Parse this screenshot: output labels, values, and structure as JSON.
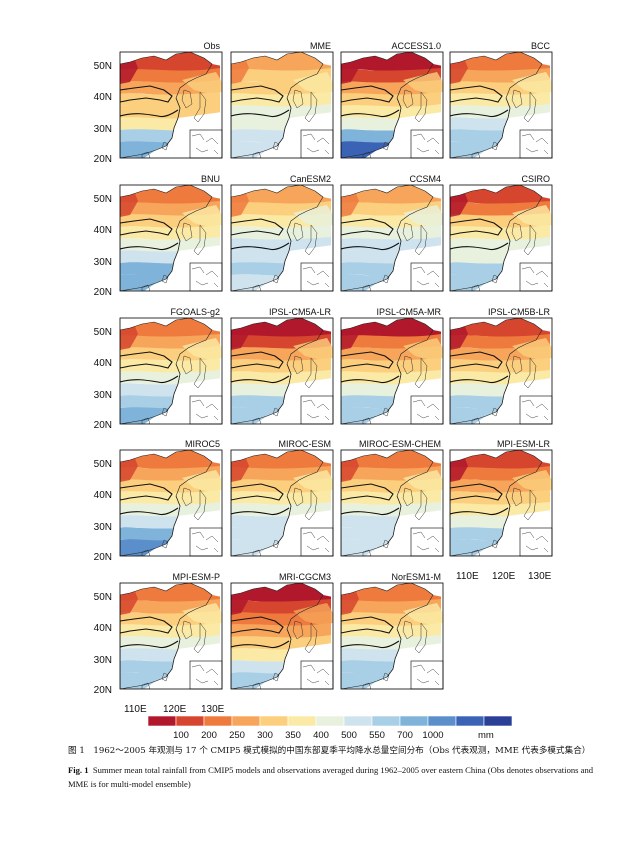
{
  "panels": [
    "Obs",
    "MME",
    "ACCESS1.0",
    "BCC",
    "BNU",
    "CanESM2",
    "CCSM4",
    "CSIRO",
    "FGOALS-g2",
    "IPSL-CM5A-LR",
    "IPSL-CM5A-MR",
    "IPSL-CM5B-LR",
    "MIROC5",
    "MIROC-ESM",
    "MIROC-ESM-CHEM",
    "MPI-ESM-LR",
    "MPI-ESM-P",
    "MRI-CGCM3",
    "NorESM1-M"
  ],
  "lat_labels": [
    "50N",
    "40N",
    "30N",
    "20N"
  ],
  "lon_labels": [
    "110E",
    "120E",
    "130E"
  ],
  "colorbar": {
    "ticks": [
      "100",
      "200",
      "250",
      "300",
      "350",
      "400",
      "500",
      "550",
      "700",
      "1000"
    ],
    "unit": "mm",
    "colors": [
      "#b2182b",
      "#d6452e",
      "#ef7a3e",
      "#f6a55a",
      "#fbcf7d",
      "#fbeaa5",
      "#e8f1de",
      "#cfe3ef",
      "#a9cfe6",
      "#7fb3d9",
      "#5a8fcb",
      "#3b63b5",
      "#2a3f96"
    ]
  },
  "caption": {
    "cn": "图 1　1962～2005 年观测与 17 个 CMIP5 模式模拟的中国东部夏季平均降水总量空间分布（Obs 代表观测，MME 代表多模式集合）",
    "en_label": "Fig. 1",
    "en_text": "Summer mean total rainfall from CMIP5 models and observations averaged during 1962–2005 over eastern China (Obs denotes observations and MME is for multi-model ensemble)"
  }
}
